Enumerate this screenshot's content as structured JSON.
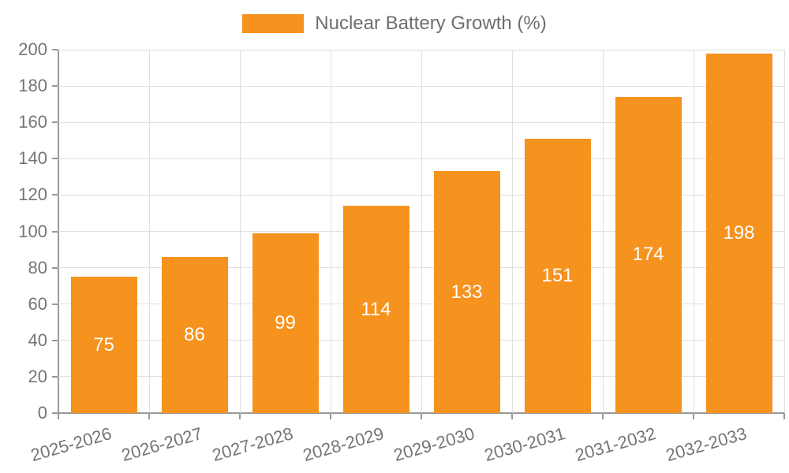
{
  "chart_data": {
    "type": "bar",
    "title": "Nuclear Battery Growth (%)",
    "series_name": "Nuclear Battery Growth (%)",
    "categories": [
      "2025-2026",
      "2026-2027",
      "2027-2028",
      "2028-2029",
      "2029-2030",
      "2030-2031",
      "2031-2032",
      "2032-2033"
    ],
    "values": [
      75,
      86,
      99,
      114,
      133,
      151,
      174,
      198
    ],
    "xlabel": "",
    "ylabel": "",
    "ylim": [
      0,
      200
    ],
    "yticks": [
      0,
      20,
      40,
      60,
      80,
      100,
      120,
      140,
      160,
      180,
      200
    ],
    "grid": true,
    "legend_position": "top-center",
    "x_tick_label_rotation_deg": -16,
    "value_labels": "inside-center"
  },
  "legend": {
    "label": "Nuclear Battery Growth (%)"
  },
  "colors": {
    "bar": "#F6921E",
    "axis": "#9a9a9a",
    "grid": "#e0e0e0",
    "tick_text": "#757575",
    "legend_text": "#6e6e6e",
    "value_label": "#ffffff",
    "background": "#ffffff"
  }
}
